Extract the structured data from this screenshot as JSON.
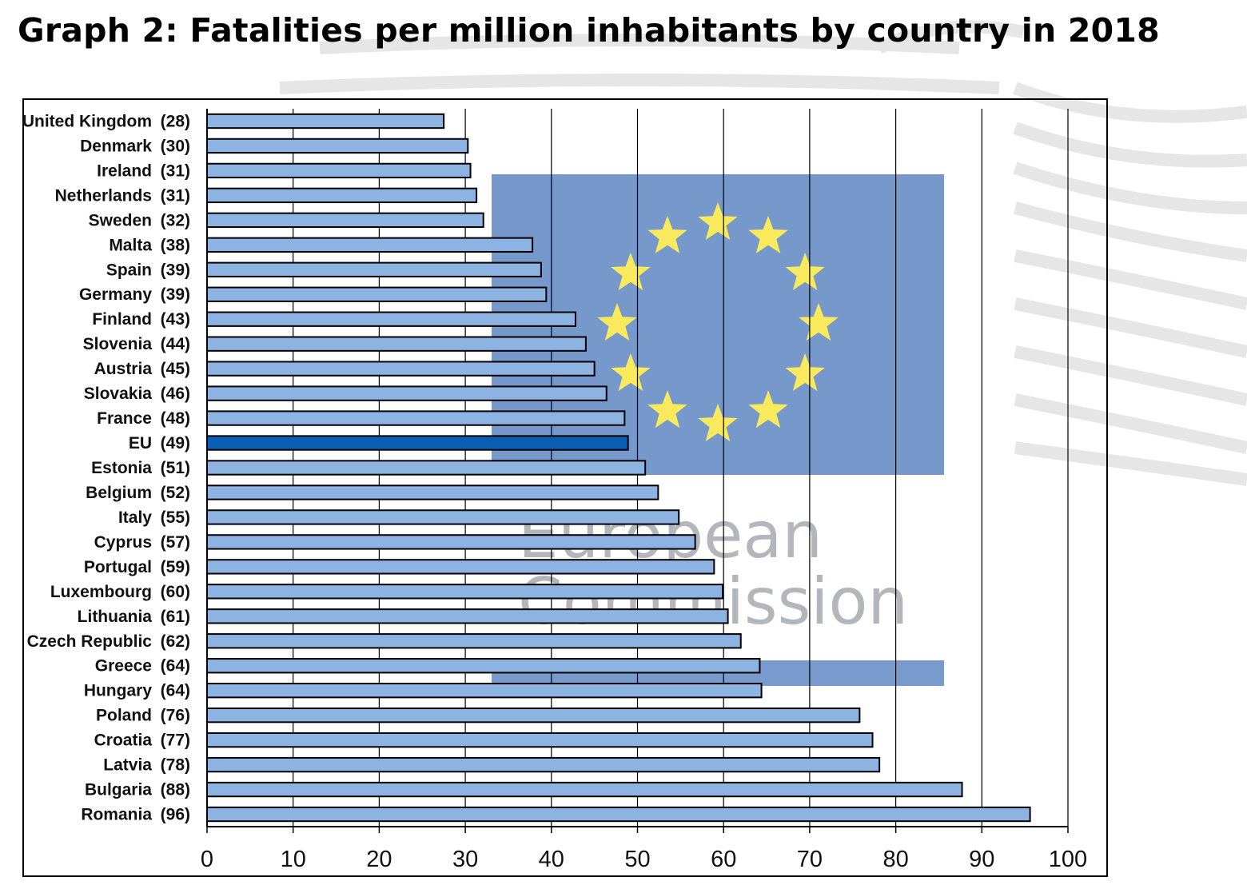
{
  "title": "Graph 2: Fatalities per million inhabitants by country in 2018",
  "colors": {
    "bar": "#8db3e2",
    "bar_highlight": "#0a5fb4",
    "bar_stroke": "#000000",
    "grid": "#000000",
    "emblem_blue": "#6a8fc6",
    "emblem_star": "#ffee55"
  },
  "background": {
    "emblem_text_line1": "European",
    "emblem_text_line2": "Commission"
  },
  "chart_data": {
    "type": "bar",
    "orientation": "horizontal",
    "title": "Graph 2: Fatalities per million inhabitants by country in 2018",
    "xlabel": "",
    "ylabel": "",
    "xlim": [
      0,
      100
    ],
    "xticks": [
      0,
      10,
      20,
      30,
      40,
      50,
      60,
      70,
      80,
      90,
      100
    ],
    "grid": "vertical",
    "legend": "none",
    "highlight": "EU",
    "categories": [
      "United Kingdom",
      "Denmark",
      "Ireland",
      "Netherlands",
      "Sweden",
      "Malta",
      "Spain",
      "Germany",
      "Finland",
      "Slovenia",
      "Austria",
      "Slovakia",
      "France",
      "EU",
      "Estonia",
      "Belgium",
      "Italy",
      "Cyprus",
      "Portugal",
      "Luxembourg",
      "Lithuania",
      "Czech Republic",
      "Greece",
      "Hungary",
      "Poland",
      "Croatia",
      "Latvia",
      "Bulgaria",
      "Romania"
    ],
    "labels": [
      "(28)",
      "(30)",
      "(31)",
      "(31)",
      "(32)",
      "(38)",
      "(39)",
      "(39)",
      "(43)",
      "(44)",
      "(45)",
      "(46)",
      "(48)",
      "(49)",
      "(51)",
      "(52)",
      "(55)",
      "(57)",
      "(59)",
      "(60)",
      "(61)",
      "(62)",
      "(64)",
      "(64)",
      "(76)",
      "(77)",
      "(78)",
      "(88)",
      "(96)"
    ],
    "values": [
      27.5,
      30.3,
      30.6,
      31.3,
      32.1,
      37.8,
      38.8,
      39.4,
      42.8,
      44.0,
      45.0,
      46.4,
      48.5,
      48.9,
      50.9,
      52.4,
      54.8,
      56.7,
      58.9,
      59.9,
      60.5,
      62.0,
      64.2,
      64.4,
      75.8,
      77.3,
      78.1,
      87.7,
      95.6
    ]
  }
}
